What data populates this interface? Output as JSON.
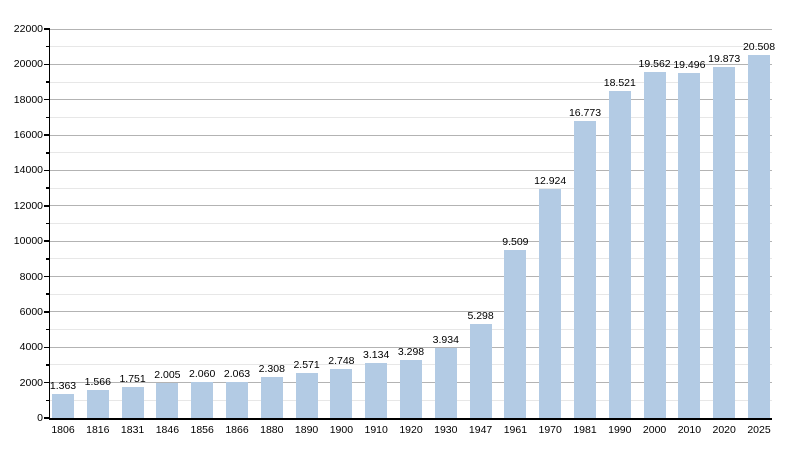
{
  "chart_data": {
    "type": "bar",
    "title": "",
    "xlabel": "",
    "ylabel": "",
    "legend": "none",
    "grid": "horizontal-major-and-minor",
    "ylim": [
      0,
      22000
    ],
    "ytick_step": 2000,
    "ytick_minor_step": 1000,
    "ytick_labels": [
      "0",
      "2000",
      "4000",
      "6000",
      "8000",
      "10000",
      "12000",
      "14000",
      "16000",
      "18000",
      "20000",
      "22000"
    ],
    "categories": [
      "1806",
      "1816",
      "1831",
      "1846",
      "1856",
      "1866",
      "1880",
      "1890",
      "1900",
      "1910",
      "1920",
      "1930",
      "1947",
      "1961",
      "1970",
      "1981",
      "1990",
      "2000",
      "2010",
      "2020",
      "2025"
    ],
    "values": [
      1363,
      1566,
      1751,
      2005,
      2060,
      2063,
      2308,
      2571,
      2748,
      3134,
      3298,
      3934,
      5298,
      9509,
      12924,
      16773,
      18521,
      19562,
      19496,
      19873,
      20508
    ],
    "value_labels": [
      "1.363",
      "1.566",
      "1.751",
      "2.005",
      "2.060",
      "2.063",
      "2.308",
      "2.571",
      "2.748",
      "3.134",
      "3.298",
      "3.934",
      "5.298",
      "9.509",
      "12.924",
      "16.773",
      "18.521",
      "19.562",
      "19.496",
      "19.873",
      "20.508"
    ],
    "colors": {
      "bar": "#b3cbe4",
      "grid_major": "#b3b3b3",
      "grid_minor": "#e7e7e7",
      "axis": "#000000",
      "text": "#000000",
      "background": "#ffffff"
    }
  }
}
